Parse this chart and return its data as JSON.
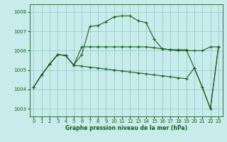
{
  "title": "Graphe pression niveau de la mer (hPa)",
  "bg_color": "#c8ecec",
  "grid_color": "#9dcfcf",
  "line_color": "#1a5c1a",
  "xlim": [
    -0.5,
    23.5
  ],
  "ylim": [
    1002.6,
    1008.4
  ],
  "yticks": [
    1003,
    1004,
    1005,
    1006,
    1007,
    1008
  ],
  "xticks": [
    0,
    1,
    2,
    3,
    4,
    5,
    6,
    7,
    8,
    9,
    10,
    11,
    12,
    13,
    14,
    15,
    16,
    17,
    18,
    19,
    20,
    21,
    22,
    23
  ],
  "s1x": [
    0,
    1,
    2,
    3,
    4,
    5,
    6,
    7,
    8,
    9,
    10,
    11,
    12,
    13,
    14,
    15,
    16,
    17,
    18,
    19,
    20,
    21,
    22,
    23
  ],
  "s1y": [
    1004.1,
    1004.75,
    1005.3,
    1005.8,
    1005.75,
    1005.25,
    1005.8,
    1007.25,
    1007.3,
    1007.5,
    1007.75,
    1007.8,
    1007.8,
    1007.55,
    1007.45,
    1006.6,
    1006.1,
    1006.05,
    1006.05,
    1006.05,
    1005.1,
    1004.1,
    1003.0,
    1006.2
  ],
  "s2x": [
    0,
    1,
    2,
    3,
    4,
    5,
    6,
    7,
    8,
    9,
    10,
    11,
    12,
    13,
    14,
    15,
    16,
    17,
    18,
    19,
    20,
    21,
    22,
    23
  ],
  "s2y": [
    1004.1,
    1004.75,
    1005.3,
    1005.8,
    1005.75,
    1005.25,
    1006.2,
    1006.2,
    1006.2,
    1006.2,
    1006.2,
    1006.2,
    1006.2,
    1006.2,
    1006.2,
    1006.15,
    1006.1,
    1006.05,
    1006.0,
    1006.0,
    1006.0,
    1006.0,
    1006.2,
    1006.2
  ],
  "s3x": [
    0,
    1,
    2,
    3,
    4,
    5,
    6,
    7,
    8,
    9,
    10,
    11,
    12,
    13,
    14,
    15,
    16,
    17,
    18,
    19,
    20,
    21,
    22,
    23
  ],
  "s3y": [
    1004.1,
    1004.75,
    1005.3,
    1005.8,
    1005.75,
    1005.25,
    1005.2,
    1005.15,
    1005.1,
    1005.05,
    1005.0,
    1004.95,
    1004.9,
    1004.85,
    1004.8,
    1004.75,
    1004.7,
    1004.65,
    1004.6,
    1004.55,
    1005.1,
    1004.1,
    1003.0,
    1006.2
  ]
}
